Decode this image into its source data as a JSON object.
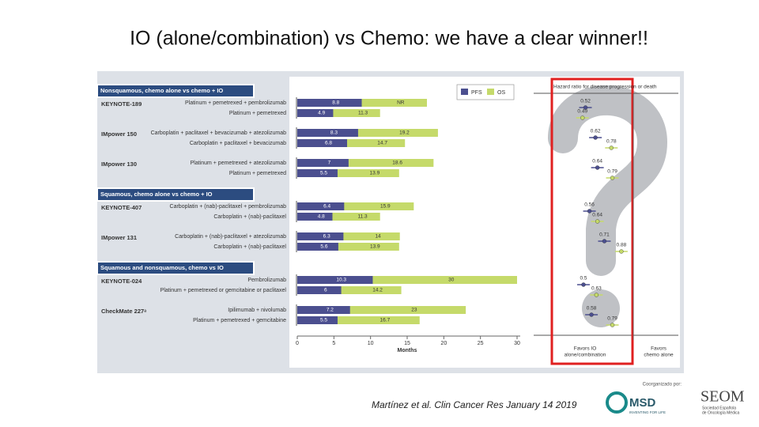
{
  "title": "IO (alone/combination) vs Chemo: we have a clear winner!!",
  "figure": {
    "legend": [
      "PFS",
      "OS"
    ],
    "hr_title": "Hazard ratio for disease progression or death",
    "x_axis": {
      "label": "Months",
      "ticks": [
        0,
        5,
        10,
        15,
        20,
        25,
        30
      ]
    },
    "favors": [
      [
        "Favors IO",
        "alone/combination"
      ],
      [
        "Favors",
        "chemo alone"
      ]
    ],
    "sections": [
      {
        "header": "Nonsquamous, chemo alone vs chemo + IO",
        "trials": [
          {
            "name": "KEYNOTE-189",
            "hr": {
              "pfs": 0.52,
              "os": 0.49
            },
            "arms": [
              {
                "label": "Platinum + pemetrexed + pembrolizumab",
                "pfs": 8.8,
                "os": null,
                "os_label": "NR"
              },
              {
                "label": "Platinum + pemetrexed",
                "pfs": 4.9,
                "os": 11.3
              }
            ]
          },
          {
            "name": "IMpower 150",
            "hr": {
              "pfs": 0.62,
              "os": 0.78
            },
            "arms": [
              {
                "label": "Carboplatin + paclitaxel + bevacizumab + atezolizumab",
                "pfs": 8.3,
                "os": 19.2
              },
              {
                "label": "Carboplatin + paclitaxel + bevacizumab",
                "pfs": 6.8,
                "os": 14.7
              }
            ]
          },
          {
            "name": "IMpower 130",
            "hr": {
              "pfs": 0.64,
              "os": 0.79
            },
            "arms": [
              {
                "label": "Platinum + pemetrexed + atezolizumab",
                "pfs": 7,
                "os": 18.6
              },
              {
                "label": "Platinum + pemetrexed",
                "pfs": 5.5,
                "os": 13.9
              }
            ]
          }
        ]
      },
      {
        "header": "Squamous, chemo alone vs chemo + IO",
        "trials": [
          {
            "name": "KEYNOTE-407",
            "hr": {
              "pfs": 0.56,
              "os": 0.64
            },
            "arms": [
              {
                "label": "Carboplatin + (nab)-paclitaxel + pembrolizumab",
                "pfs": 6.4,
                "os": 15.9
              },
              {
                "label": "Carboplatin + (nab)-paclitaxel",
                "pfs": 4.8,
                "os": 11.3
              }
            ]
          },
          {
            "name": "IMpower 131",
            "hr": {
              "pfs": 0.71,
              "os": 0.88
            },
            "arms": [
              {
                "label": "Carboplatin + (nab)-paclitaxel + atezolizumab",
                "pfs": 6.3,
                "os": 14
              },
              {
                "label": "Carboplatin + (nab)-paclitaxel",
                "pfs": 5.6,
                "os": 13.9
              }
            ]
          }
        ]
      },
      {
        "header": "Squamous and nonsquamous, chemo vs IO",
        "trials": [
          {
            "name": "KEYNOTE-024",
            "hr": {
              "pfs": 0.5,
              "os": 0.63
            },
            "arms": [
              {
                "label": "Pembrolizumab",
                "pfs": 10.3,
                "os": 30
              },
              {
                "label": "Platinum + pemetrexed or gemcitabine or paclitaxel",
                "pfs": 6,
                "os": 14.2
              }
            ]
          },
          {
            "name": "CheckMate 227ᵃ",
            "hr": {
              "pfs": 0.58,
              "os": 0.79
            },
            "arms": [
              {
                "label": "Ipilimumab + nivolumab",
                "pfs": 7.2,
                "os": 23
              },
              {
                "label": "Platinum + pemetrexed + gemcitabine",
                "pfs": 5.5,
                "os": 16.7
              }
            ]
          }
        ]
      }
    ]
  },
  "citation": "Martínez et al. Clin Cancer Res January 14 2019",
  "logos": {
    "coorganized": "Coorganizado por:",
    "msd": "MSD",
    "msd_tagline": "INVENTING FOR LIFE",
    "seom": "SEOM",
    "seom_tagline": [
      "Sociedad Española",
      "de Oncología Médica"
    ]
  }
}
